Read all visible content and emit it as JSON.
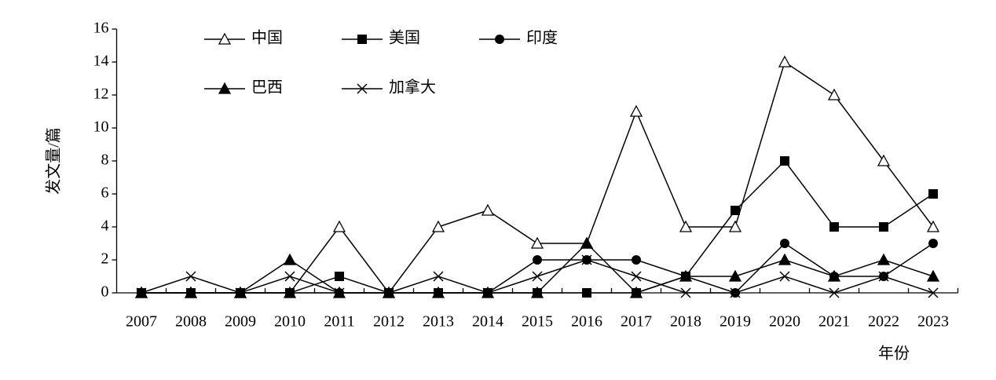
{
  "chart_data": {
    "type": "line",
    "y_label": "发文量/篇",
    "x_label": "年份",
    "categories": [
      "2007",
      "2008",
      "2009",
      "2010",
      "2011",
      "2012",
      "2013",
      "2014",
      "2015",
      "2016",
      "2017",
      "2018",
      "2019",
      "2020",
      "2021",
      "2022",
      "2023"
    ],
    "ylim": [
      0,
      16
    ],
    "yticks": [
      0,
      2,
      4,
      6,
      8,
      10,
      12,
      14,
      16
    ],
    "series": [
      {
        "name": "中国",
        "color": "#000000",
        "marker": "open-triangle",
        "values": [
          0,
          0,
          0,
          0,
          4,
          0,
          4,
          5,
          3,
          3,
          11,
          4,
          4,
          14,
          12,
          8,
          4
        ]
      },
      {
        "name": "美国",
        "color": "#000000",
        "marker": "square",
        "values": [
          0,
          0,
          0,
          0,
          1,
          0,
          0,
          0,
          0,
          0,
          0,
          1,
          5,
          8,
          4,
          4,
          6
        ]
      },
      {
        "name": "印度",
        "color": "#000000",
        "marker": "circle",
        "values": [
          0,
          0,
          0,
          0,
          0,
          0,
          0,
          0,
          2,
          2,
          2,
          1,
          0,
          3,
          1,
          1,
          3
        ]
      },
      {
        "name": "巴西",
        "color": "#000000",
        "marker": "triangle",
        "values": [
          0,
          0,
          0,
          2,
          0,
          0,
          0,
          0,
          0,
          3,
          0,
          1,
          1,
          2,
          1,
          2,
          1
        ]
      },
      {
        "name": "加拿大",
        "color": "#000000",
        "marker": "cross",
        "values": [
          0,
          1,
          0,
          1,
          0,
          0,
          1,
          0,
          1,
          2,
          1,
          0,
          0,
          1,
          0,
          1,
          0
        ]
      }
    ]
  }
}
